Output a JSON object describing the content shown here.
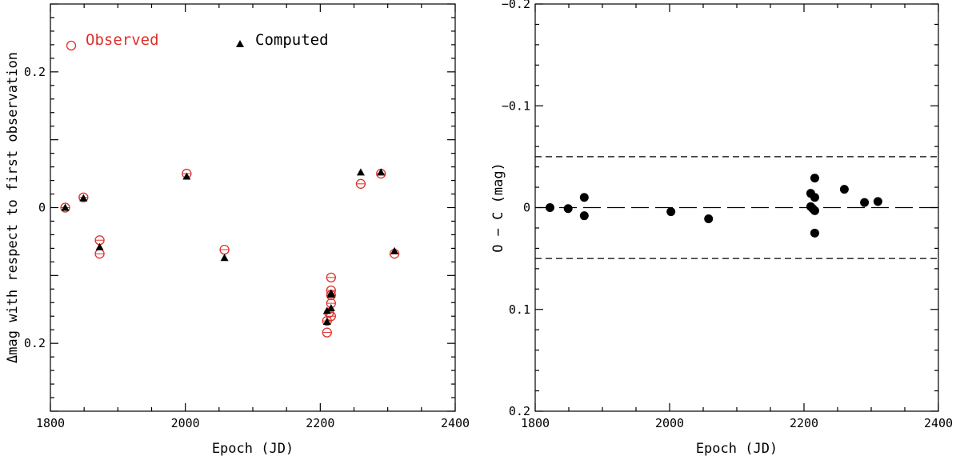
{
  "chart_data": [
    {
      "type": "scatter",
      "xlabel": "Epoch (JD)",
      "ylabel": "Δmag with respect to first observation",
      "xlim": [
        1800,
        2400
      ],
      "ylim": [
        0.3,
        -0.3
      ],
      "xticks": [
        "1800",
        "2000",
        "2200",
        "2400"
      ],
      "yticks": [
        {
          "value": -0.2,
          "label": "0.2"
        },
        {
          "value": 0,
          "label": "0"
        },
        {
          "value": 0.2,
          "label": "0.2"
        }
      ],
      "legend": {
        "placement": "top"
      },
      "series": [
        {
          "name": "Observed",
          "marker": "open-circle",
          "color": "#e0302a",
          "points": [
            [
              1822,
              0.0
            ],
            [
              1849,
              0.015
            ],
            [
              1873,
              -0.068
            ],
            [
              1873,
              -0.048
            ],
            [
              2002,
              0.05
            ],
            [
              2058,
              -0.062
            ],
            [
              2210,
              -0.184
            ],
            [
              2210,
              -0.167
            ],
            [
              2213,
              -0.155
            ],
            [
              2216,
              -0.16
            ],
            [
              2216,
              -0.141
            ],
            [
              2216,
              -0.129
            ],
            [
              2216,
              -0.122
            ],
            [
              2216,
              -0.103
            ],
            [
              2260,
              0.035
            ],
            [
              2290,
              0.05
            ],
            [
              2310,
              -0.068
            ]
          ]
        },
        {
          "name": "Computed",
          "marker": "filled-triangle",
          "color": "#000000",
          "points": [
            [
              1822,
              0.0
            ],
            [
              1849,
              0.014
            ],
            [
              1873,
              -0.058
            ],
            [
              2002,
              0.046
            ],
            [
              2058,
              -0.074
            ],
            [
              2210,
              -0.168
            ],
            [
              2210,
              -0.152
            ],
            [
              2216,
              -0.148
            ],
            [
              2216,
              -0.128
            ],
            [
              2216,
              -0.126
            ],
            [
              2260,
              0.052
            ],
            [
              2290,
              0.052
            ],
            [
              2310,
              -0.064
            ]
          ]
        }
      ]
    },
    {
      "type": "scatter",
      "xlabel": "Epoch (JD)",
      "ylabel": "O − C (mag)",
      "xlim": [
        1800,
        2400
      ],
      "ylim": [
        -0.2,
        0.2
      ],
      "xticks": [
        "1800",
        "2000",
        "2200",
        "2400"
      ],
      "yticks": [
        {
          "value": -0.2,
          "label": "−0.2"
        },
        {
          "value": -0.1,
          "label": "−0.1"
        },
        {
          "value": 0,
          "label": "0"
        },
        {
          "value": 0.1,
          "label": "0.1"
        },
        {
          "value": 0.2,
          "label": "0.2"
        }
      ],
      "reference_lines": [
        {
          "y": 0,
          "style": "long-dash"
        },
        {
          "y": -0.05,
          "style": "short-dash"
        },
        {
          "y": 0.05,
          "style": "short-dash"
        }
      ],
      "series": [
        {
          "marker": "filled-circle",
          "color": "#000000",
          "points": [
            [
              1822,
              0.0
            ],
            [
              1849,
              0.001
            ],
            [
              1873,
              -0.01
            ],
            [
              1873,
              0.008
            ],
            [
              2002,
              0.004
            ],
            [
              2058,
              0.011
            ],
            [
              2210,
              -0.014
            ],
            [
              2210,
              -0.001
            ],
            [
              2213,
              0.001
            ],
            [
              2216,
              -0.029
            ],
            [
              2216,
              -0.01
            ],
            [
              2216,
              0.003
            ],
            [
              2216,
              0.025
            ],
            [
              2260,
              -0.018
            ],
            [
              2290,
              -0.005
            ],
            [
              2310,
              -0.006
            ]
          ]
        }
      ]
    }
  ]
}
